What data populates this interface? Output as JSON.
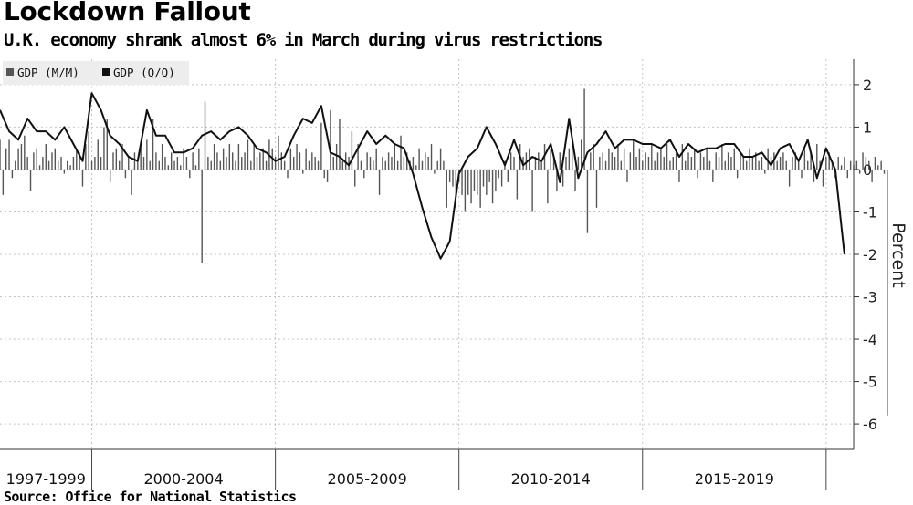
{
  "title": "Lockdown Fallout",
  "subtitle": "U.K. economy shrank almost 6% in March during virus restrictions",
  "source": "Source: Office for National Statistics",
  "chart_data": {
    "type": "bar",
    "ylabel": "Percent",
    "ylim": [
      -6.6,
      2.6
    ],
    "yticks": [
      2,
      1,
      0,
      -1,
      -2,
      -3,
      -4,
      -5,
      -6
    ],
    "ytick_labels": [
      "2",
      "1",
      "0",
      "-1",
      "-2",
      "-3",
      "-4",
      "-5",
      "-6"
    ],
    "grid": true,
    "legend_position": "top-left",
    "period_labels": [
      "1997-1999",
      "2000-2004",
      "2005-2009",
      "2010-2014",
      "2015-2019"
    ],
    "x_range": [
      1997.0,
      2020.25
    ],
    "series": [
      {
        "name": "GDP (M/M)",
        "type": "bar",
        "color": "#555555",
        "x_start": 1997.0,
        "x_step": 0.083333,
        "values": [
          0.7,
          -0.6,
          0.5,
          0.7,
          -0.2,
          0.2,
          0.5,
          0.6,
          0.8,
          0.3,
          -0.5,
          0.4,
          0.5,
          0.1,
          0.3,
          0.6,
          0.2,
          0.4,
          0.5,
          0.2,
          0.3,
          -0.1,
          0.2,
          0.1,
          0.3,
          0.5,
          0.4,
          -0.4,
          0.6,
          0.9,
          0.2,
          0.3,
          0.7,
          0.3,
          1.0,
          1.2,
          -0.3,
          0.4,
          0.5,
          0.2,
          0.6,
          -0.2,
          0.3,
          -0.6,
          0.4,
          0.2,
          0.6,
          0.3,
          0.7,
          0.2,
          1.2,
          0.4,
          0.2,
          0.6,
          0.3,
          0.1,
          0.4,
          0.2,
          0.3,
          0.1,
          0.5,
          0.3,
          -0.2,
          0.4,
          0.1,
          0.5,
          -2.2,
          1.6,
          0.3,
          0.2,
          0.6,
          0.4,
          0.2,
          0.5,
          0.3,
          0.6,
          0.4,
          0.2,
          0.6,
          0.3,
          0.4,
          0.7,
          0.2,
          0.6,
          0.3,
          0.4,
          0.5,
          0.2,
          0.7,
          0.5,
          0.3,
          0.8,
          0.4,
          0.2,
          -0.2,
          0.5,
          0.3,
          0.6,
          0.4,
          -0.1,
          0.5,
          0.2,
          0.4,
          0.3,
          0.2,
          1.1,
          -0.2,
          -0.3,
          1.4,
          0.3,
          0.6,
          1.2,
          0.2,
          0.4,
          0.3,
          0.9,
          -0.4,
          0.6,
          0.2,
          -0.2,
          0.4,
          0.3,
          0.2,
          0.5,
          -0.6,
          0.3,
          0.2,
          0.4,
          0.3,
          0.6,
          0.2,
          0.8,
          0.3,
          0.4,
          0.2,
          0.3,
          0.1,
          0.5,
          0.2,
          0.4,
          0.3,
          0.6,
          -0.1,
          0.2,
          0.5,
          0.2,
          -0.9,
          -0.3,
          -0.4,
          -0.9,
          -0.3,
          -0.6,
          -1.0,
          -0.6,
          -0.8,
          -0.5,
          -0.6,
          -0.9,
          -0.4,
          -0.6,
          -0.3,
          -0.8,
          -0.5,
          -0.2,
          -0.4,
          0.2,
          -0.3,
          0.4,
          0.3,
          -0.7,
          0.6,
          0.3,
          0.4,
          0.5,
          -1.0,
          0.3,
          0.4,
          0.2,
          0.6,
          -0.8,
          0.5,
          0.3,
          -0.5,
          0.4,
          -0.4,
          0.3,
          0.5,
          0.6,
          -0.5,
          0.3,
          0.7,
          1.9,
          -1.5,
          0.4,
          0.6,
          -0.9,
          0.3,
          0.4,
          0.2,
          0.5,
          0.4,
          0.3,
          0.6,
          0.2,
          0.5,
          -0.3,
          0.4,
          0.7,
          0.3,
          0.5,
          0.2,
          0.4,
          0.3,
          0.6,
          0.2,
          0.4,
          0.5,
          0.3,
          0.6,
          0.2,
          0.3,
          0.4,
          -0.3,
          0.6,
          0.2,
          0.4,
          0.3,
          0.5,
          -0.2,
          0.4,
          0.3,
          0.5,
          0.2,
          -0.3,
          0.4,
          0.3,
          0.6,
          0.2,
          0.4,
          0.3,
          0.5,
          -0.2,
          0.4,
          0.3,
          0.2,
          0.5,
          0.3,
          0.4,
          0.2,
          0.3,
          -0.1,
          0.5,
          0.3,
          0.4,
          0.2,
          0.3,
          0.4,
          0.2,
          -0.4,
          0.3,
          0.4,
          0.2,
          -0.2,
          0.5,
          0.2,
          0.4,
          -0.3,
          0.6,
          0.2,
          -0.4,
          0.3,
          0.4,
          0.2,
          -0.2,
          0.3,
          0.1,
          0.3,
          -0.2,
          0.2,
          0.1,
          0.2,
          -0.1,
          0.4,
          0.3,
          0.2,
          -0.3,
          0.3,
          0.1,
          0.2,
          -0.1,
          -5.8
        ]
      },
      {
        "name": "GDP (Q/Q)",
        "type": "line",
        "color": "#111111",
        "x_start": 1997.0,
        "x_step": 0.25,
        "values": [
          1.4,
          0.9,
          0.7,
          1.2,
          0.9,
          0.9,
          0.7,
          1.0,
          0.6,
          0.2,
          1.8,
          1.4,
          0.8,
          0.6,
          0.3,
          0.2,
          1.4,
          0.8,
          0.8,
          0.4,
          0.4,
          0.5,
          0.8,
          0.9,
          0.7,
          0.9,
          1.0,
          0.8,
          0.5,
          0.4,
          0.2,
          0.3,
          0.8,
          1.2,
          1.1,
          1.5,
          0.4,
          0.3,
          0.1,
          0.5,
          0.9,
          0.6,
          0.8,
          0.6,
          0.5,
          -0.1,
          -0.9,
          -1.6,
          -2.1,
          -1.7,
          -0.1,
          0.3,
          0.5,
          1.0,
          0.6,
          0.1,
          0.7,
          0.1,
          0.3,
          0.2,
          0.6,
          -0.3,
          1.2,
          -0.2,
          0.4,
          0.6,
          0.9,
          0.5,
          0.7,
          0.7,
          0.6,
          0.6,
          0.5,
          0.7,
          0.3,
          0.6,
          0.4,
          0.5,
          0.5,
          0.6,
          0.6,
          0.3,
          0.3,
          0.4,
          0.1,
          0.5,
          0.6,
          0.2,
          0.7,
          -0.2,
          0.5,
          0.0,
          -2.0
        ]
      }
    ]
  }
}
